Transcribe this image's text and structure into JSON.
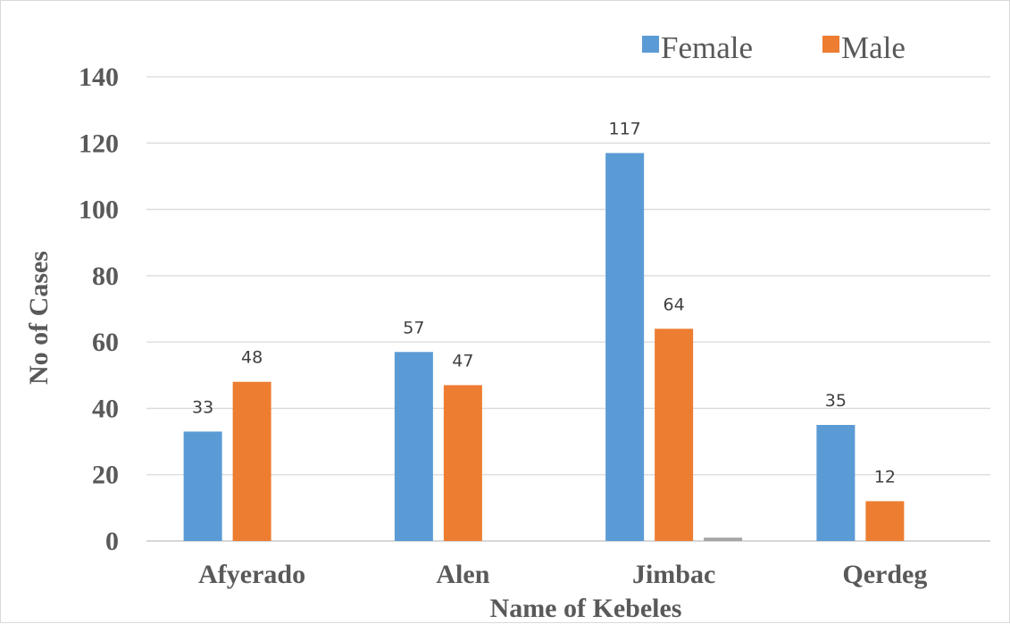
{
  "chart_data": {
    "type": "bar",
    "title": "",
    "xlabel": "Name of Kebeles",
    "ylabel": "No of Cases",
    "ylim": [
      0,
      140
    ],
    "yticks": [
      0,
      20,
      40,
      60,
      80,
      100,
      120,
      140
    ],
    "grid": true,
    "legend_position": "top-right",
    "categories": [
      "Afyerado",
      "Alen",
      "Jimbac",
      "Qerdeg"
    ],
    "series": [
      {
        "name": "Female",
        "color": "#5B9BD5",
        "values": [
          33,
          57,
          117,
          35
        ]
      },
      {
        "name": "Male",
        "color": "#ED7D31",
        "values": [
          48,
          47,
          64,
          12
        ]
      },
      {
        "name": "",
        "color": "#A5A5A5",
        "values": [
          null,
          null,
          1,
          null
        ]
      }
    ]
  }
}
